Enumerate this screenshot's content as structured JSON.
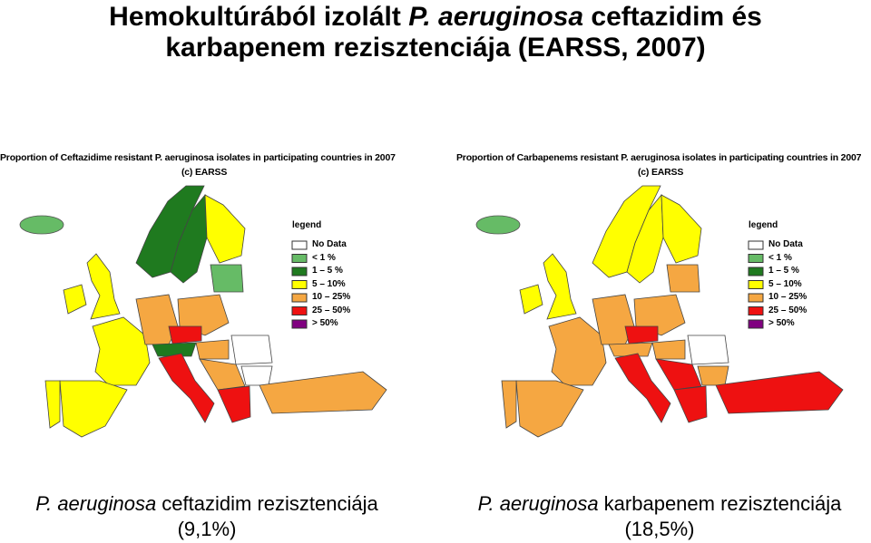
{
  "header": {
    "title_line1": [
      "Hemokultúrából izolált ",
      "P. aeruginosa",
      " ceftazidim és"
    ],
    "title_line2": "karbapenem rezisztenciája (EARSS, 2007)"
  },
  "maps": [
    {
      "title": "Proportion of Ceftazidime resistant P. aeruginosa isolates in participating countries in 2007",
      "copyright": "(c) EARSS",
      "legend_title": "legend",
      "legend": [
        {
          "label": "No Data",
          "color": "#ffffff"
        },
        {
          "label": "< 1 %",
          "color": "#66bb66"
        },
        {
          "label": "1 – 5 %",
          "color": "#1f7a1f"
        },
        {
          "label": "5 – 10%",
          "color": "#ffff00"
        },
        {
          "label": "10 – 25%",
          "color": "#f5a742"
        },
        {
          "label": "25 – 50%",
          "color": "#ee1111"
        },
        {
          "label": "> 50%",
          "color": "#800080"
        }
      ],
      "caption_line1": [
        "P. aeruginosa",
        " ceftazidim rezisztenciája"
      ],
      "caption_line2": "(9,1%)"
    },
    {
      "title": "Proportion of Carbapenems resistant P. aeruginosa isolates in participating countries in 2007",
      "copyright": "(c) EARSS",
      "legend_title": "legend",
      "legend": [
        {
          "label": "No Data",
          "color": "#ffffff"
        },
        {
          "label": "< 1 %",
          "color": "#66bb66"
        },
        {
          "label": "1 – 5 %",
          "color": "#1f7a1f"
        },
        {
          "label": "5 – 10%",
          "color": "#ffff00"
        },
        {
          "label": "10 – 25%",
          "color": "#f5a742"
        },
        {
          "label": "25 – 50%",
          "color": "#ee1111"
        },
        {
          "label": "> 50%",
          "color": "#800080"
        }
      ],
      "caption_line1": [
        "P. aeruginosa",
        " karbapenem rezisztenciája"
      ],
      "caption_line2": "(18,5%)"
    }
  ]
}
